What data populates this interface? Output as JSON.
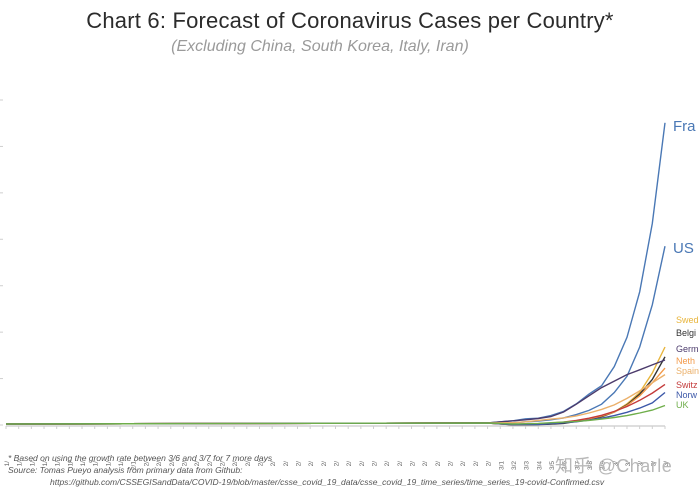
{
  "chart_data": {
    "type": "line",
    "title": "Chart 6: Forecast of Coronavirus Cases per Country*",
    "subtitle": "(Excluding China, South Korea, Italy, Iran)",
    "xlabel": "",
    "ylabel": "",
    "grid": false,
    "legend_placement": "right, direct labels at line ends (cropped)",
    "x_labels": [
      "1/22",
      "1/23",
      "1/24",
      "1/25",
      "1/26",
      "1/27",
      "1/28",
      "1/29",
      "1/30",
      "1/31",
      "2/1",
      "2/2",
      "2/3",
      "2/4",
      "2/5",
      "2/6",
      "2/7",
      "2/8",
      "2/9",
      "2/10",
      "2/11",
      "2/12",
      "2/13",
      "2/14",
      "2/15",
      "2/16",
      "2/17",
      "2/18",
      "2/19",
      "2/20",
      "2/21",
      "2/22",
      "2/23",
      "2/24",
      "2/25",
      "2/26",
      "2/27",
      "2/28",
      "2/29",
      "3/1",
      "3/2",
      "3/3",
      "3/4",
      "3/5",
      "3/6",
      "3/7",
      "3/8",
      "3/9",
      "3/10",
      "3/11",
      "3/12",
      "3/13",
      "3/14"
    ],
    "x_labels_visible": [
      "1/",
      "1/",
      "1/",
      "1/",
      "1/",
      "1/",
      "1/",
      "1/",
      "1/",
      "1/",
      "2/1",
      "2/",
      "2/",
      "2/",
      "2/",
      "2/",
      "2/",
      "2/",
      "2/",
      "2/",
      "2/",
      "2/",
      "2/",
      "2/",
      "2/",
      "2/",
      "2/",
      "2/",
      "2/",
      "2/",
      "2/",
      "2/",
      "2/",
      "2/",
      "2/",
      "2/",
      "2/",
      "2/",
      "2/",
      "3/1",
      "3/2",
      "3/3",
      "3/4",
      "3/5",
      "3/6",
      "3/7",
      "3/8",
      "3/9",
      "3/",
      "3/",
      "3/",
      "3/",
      "3/"
    ],
    "series_start_index": 40,
    "series": [
      {
        "name": "Fra",
        "color": "#4a78b5",
        "values": [
          130,
          190,
          210,
          290,
          420,
          650,
          950,
          1210,
          1800,
          2700,
          4100,
          6200,
          9300
        ]
      },
      {
        "name": "US",
        "color": "#4a78b5",
        "values": [
          70,
          100,
          120,
          160,
          220,
          320,
          450,
          640,
          1000,
          1500,
          2400,
          3700,
          5500
        ]
      },
      {
        "name": "Swed",
        "color": "#e8b53c",
        "values": [
          10,
          15,
          30,
          50,
          70,
          110,
          160,
          250,
          400,
          650,
          1000,
          1600,
          2400
        ]
      },
      {
        "name": "Belgi",
        "color": "#333333",
        "values": [
          5,
          8,
          12,
          25,
          50,
          110,
          170,
          260,
          400,
          620,
          950,
          1400,
          2100
        ]
      },
      {
        "name": "Germ",
        "color": "#4b3a6b",
        "values": [
          130,
          160,
          200,
          260,
          400,
          640,
          900,
          1150,
          1350,
          1550,
          1700,
          1850,
          2000
        ]
      },
      {
        "name": "Neth",
        "color": "#f39a4a",
        "values": [
          10,
          15,
          25,
          40,
          80,
          130,
          190,
          280,
          400,
          600,
          900,
          1300,
          1750
        ]
      },
      {
        "name": "Spain",
        "color": "#ebb06a",
        "values": [
          70,
          100,
          140,
          180,
          220,
          280,
          370,
          480,
          620,
          820,
          1050,
          1300,
          1550
        ]
      },
      {
        "name": "Switz",
        "color": "#c43b3b",
        "values": [
          20,
          30,
          40,
          60,
          90,
          140,
          210,
          300,
          420,
          570,
          760,
          980,
          1250
        ]
      },
      {
        "name": "Norw",
        "color": "#3b57a8",
        "values": [
          10,
          15,
          20,
          40,
          70,
          100,
          150,
          210,
          290,
          390,
          520,
          680,
          1000
        ]
      },
      {
        "name": "UK",
        "color": "#6fae4a",
        "values": [
          30,
          40,
          50,
          70,
          90,
          110,
          140,
          180,
          230,
          290,
          370,
          460,
          600
        ]
      }
    ],
    "ylim": [
      0,
      10000
    ]
  },
  "footnotes": {
    "line1": "* Based on using the growth rate between 3/6 and 3/7 for 7 more days",
    "line2": "Source: Tomas Pueyo analysis from primary data from Github:",
    "line3": "https://github.com/CSSEGISandData/COVID-19/blob/master/csse_covid_19_data/csse_covid_19_time_series/time_series_19-covid-Confirmed.csv"
  },
  "watermark": "知乎 @Charle"
}
